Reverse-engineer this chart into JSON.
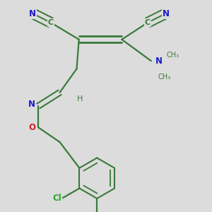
{
  "background_color": "#dcdcdc",
  "bond_color": "#3a7a3a",
  "atom_colors": {
    "N": "#1a1acc",
    "O": "#cc2222",
    "Cl": "#22aa22",
    "C": "#3a7a3a",
    "H": "#3a7a3a"
  },
  "figsize": [
    3.0,
    3.0
  ],
  "dpi": 100
}
